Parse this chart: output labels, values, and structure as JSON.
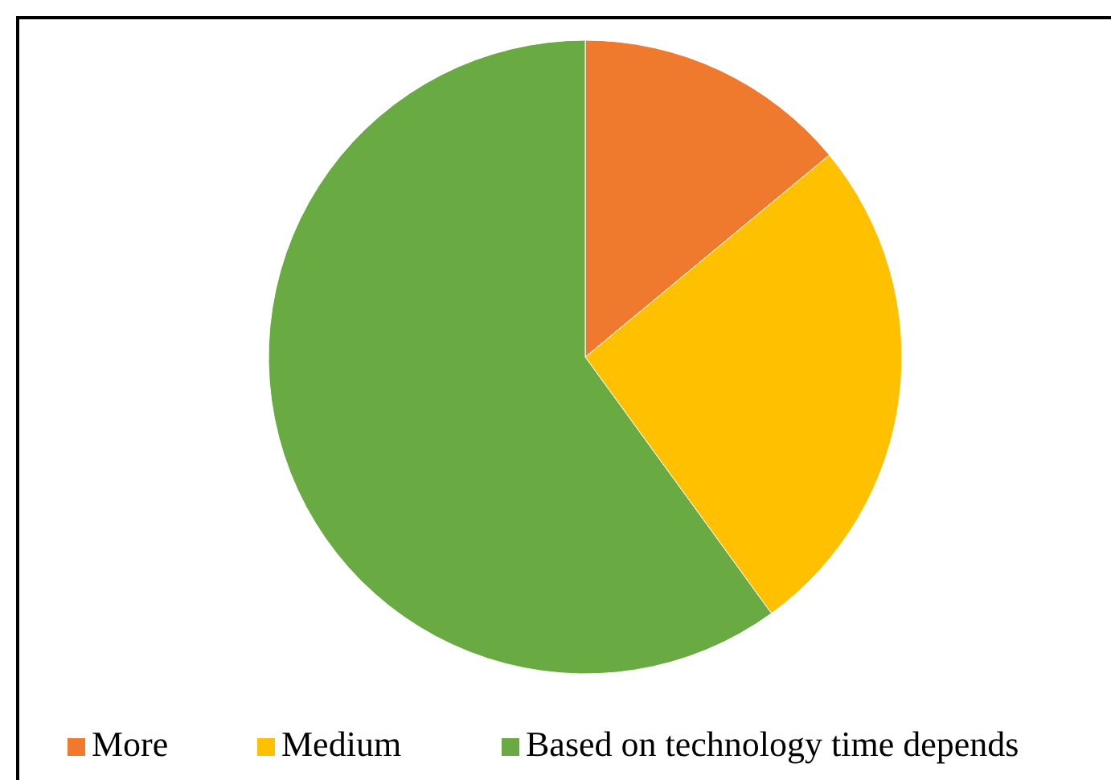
{
  "chart_data": {
    "type": "pie",
    "categories": [
      "More",
      "Medium",
      "Based on technology time depends"
    ],
    "values": [
      14,
      26,
      60
    ],
    "colors": [
      "#ef7a2e",
      "#ffc000",
      "#6aaa42"
    ],
    "legend": "bottom"
  }
}
